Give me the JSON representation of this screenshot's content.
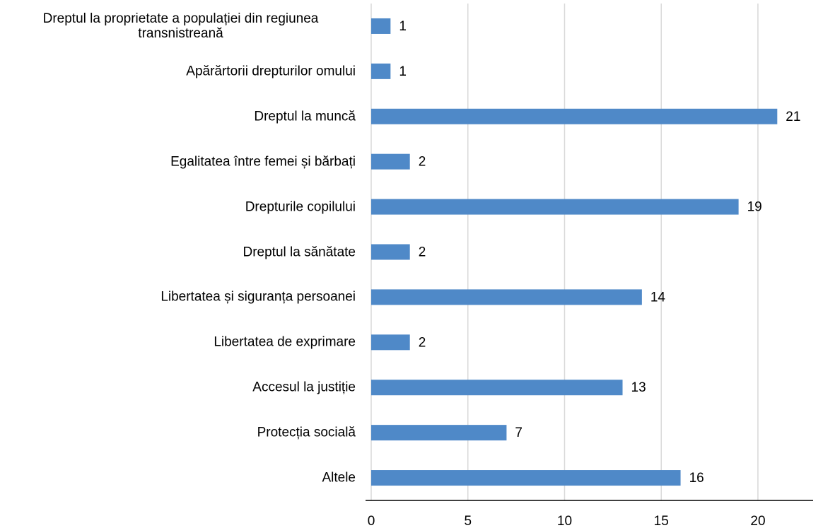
{
  "chart_data": {
    "type": "bar",
    "orientation": "horizontal",
    "categories": [
      "Dreptul la proprietate a populației din regiunea transnistreană",
      "Apărărtorii drepturilor omului",
      "Dreptul la muncă",
      "Egalitatea între femei și bărbați",
      "Drepturile copilului",
      "Dreptul la sănătate",
      "Libertatea și siguranța persoanei",
      "Libertatea de exprimare",
      "Accesul la justiție",
      "Protecția socială",
      "Altele"
    ],
    "values": [
      1,
      1,
      21,
      2,
      19,
      2,
      14,
      2,
      13,
      7,
      16
    ],
    "color": "#4f89c8",
    "xlim": [
      0,
      23
    ],
    "xticks": [
      0,
      5,
      10,
      15,
      20
    ],
    "grid": true
  }
}
